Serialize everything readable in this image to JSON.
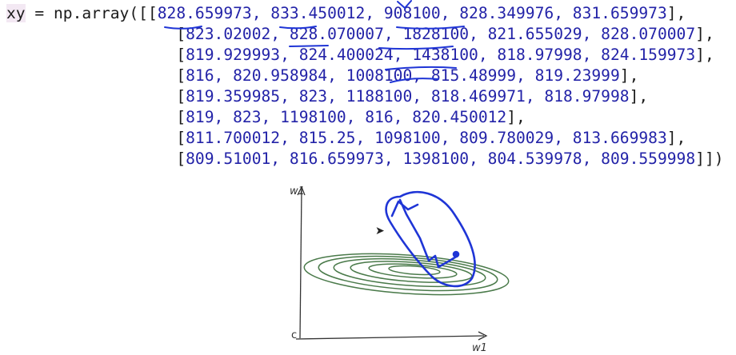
{
  "code": {
    "variable": "xy",
    "assign": " = np.array([",
    "rows": [
      {
        "open": "[",
        "values": "828.659973, 833.450012, 908100, 828.349976, 831.659973",
        "close": "],"
      },
      {
        "open": "[",
        "values": "823.02002, 828.070007, 1828100, 821.655029, 828.070007",
        "close": "],"
      },
      {
        "open": "[",
        "values": "819.929993, 824.400024, 1438100, 818.97998, 824.159973",
        "close": "],"
      },
      {
        "open": "[",
        "values": "816, 820.958984, 1008100, 815.48999, 819.23999",
        "close": "],"
      },
      {
        "open": "[",
        "values": "819.359985, 823, 1188100, 818.469971, 818.97998",
        "close": "],"
      },
      {
        "open": "[",
        "values": "819, 823, 1198100, 816, 820.450012",
        "close": "],"
      },
      {
        "open": "[",
        "values": "811.700012, 815.25, 1098100, 809.780029, 813.669983",
        "close": "],"
      },
      {
        "open": "[",
        "values": "809.51001, 816.659973, 1398100, 804.539978, 809.559998",
        "close": "]])"
      }
    ]
  },
  "sketch": {
    "y_axis_label": "w1",
    "x_axis_label": "w1",
    "origin_label": "c",
    "contour_color": "#4a7a4a",
    "path_color": "#1f35d6"
  },
  "colors": {
    "number": "#2323a8",
    "annotation": "#1f35d6"
  },
  "icons": {
    "cursor": "mouse-pointer-icon"
  }
}
